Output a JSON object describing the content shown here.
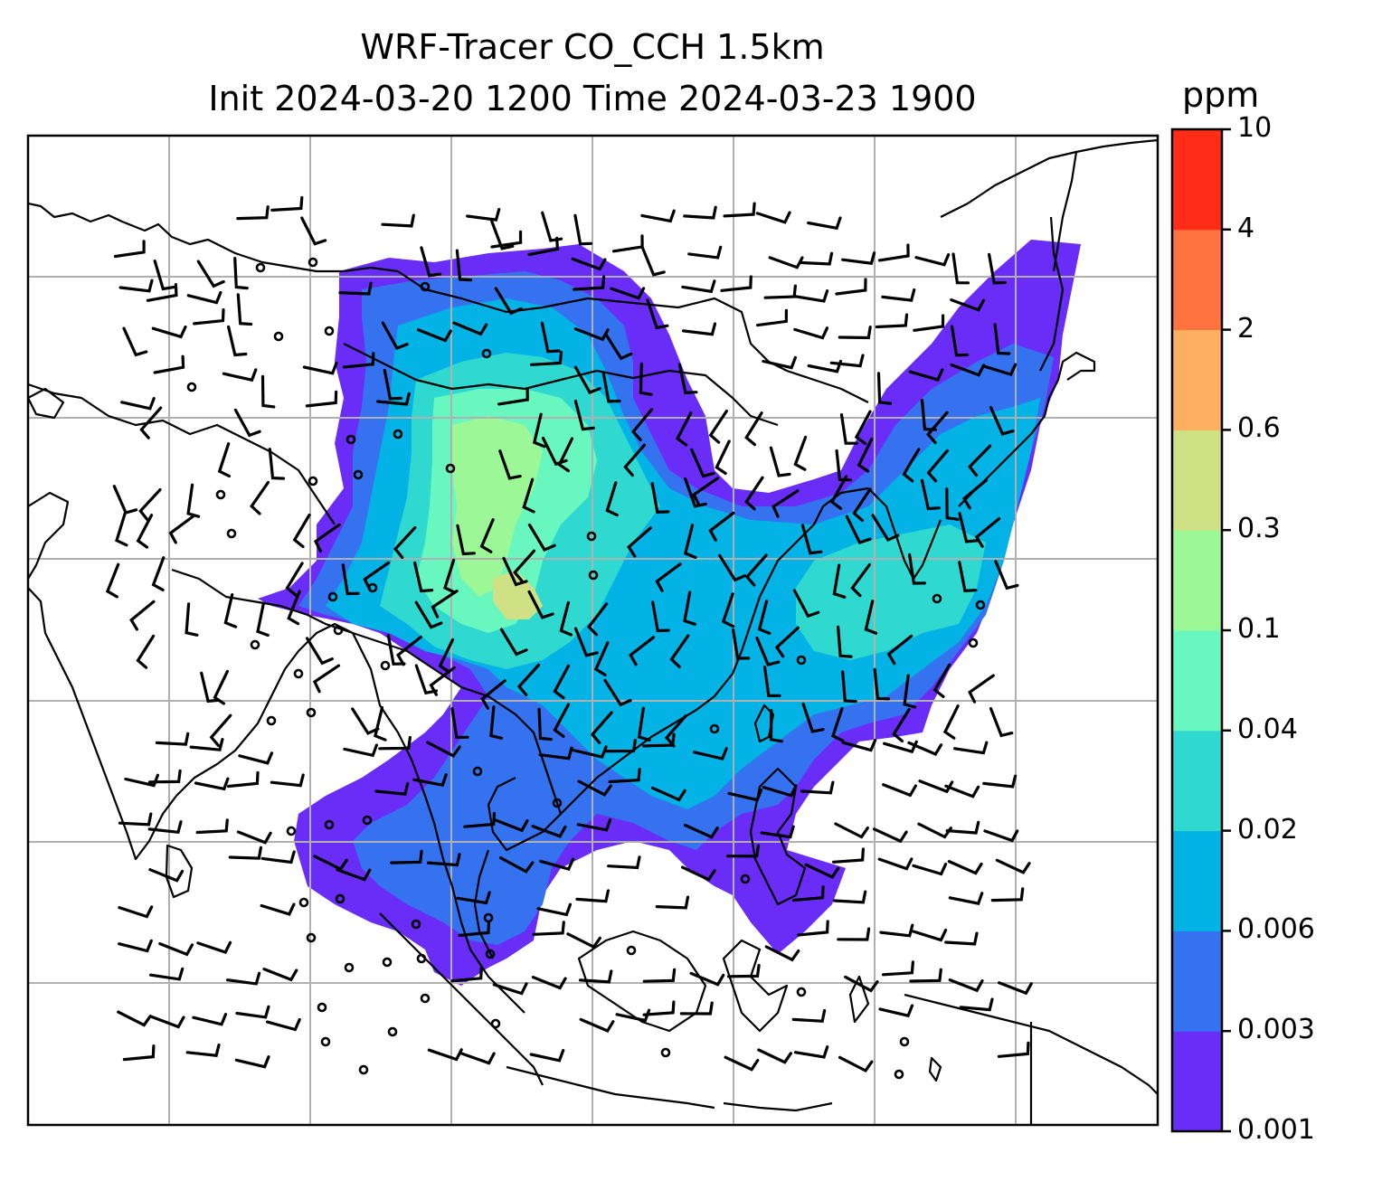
{
  "title": {
    "line1": "WRF-Tracer CO_CCH 1.5km",
    "line2": "Init 2024-03-20 1200 Time 2024-03-23 1900"
  },
  "colorbar": {
    "unit": "ppm",
    "levels": [
      "0.001",
      "0.003",
      "0.006",
      "0.02",
      "0.04",
      "0.1",
      "0.3",
      "0.6",
      "2",
      "4",
      "10"
    ],
    "colors": [
      "#6a2cf7",
      "#3572f0",
      "#04b3e6",
      "#2fd9d0",
      "#69f7c0",
      "#9cf896",
      "#d0e185",
      "#fcb05f",
      "#ff733e",
      "#ff2d18"
    ]
  },
  "map": {
    "coastline_color": "#000000",
    "gridline_color": "#b0b0b0",
    "wind_barb_color": "#000000"
  }
}
